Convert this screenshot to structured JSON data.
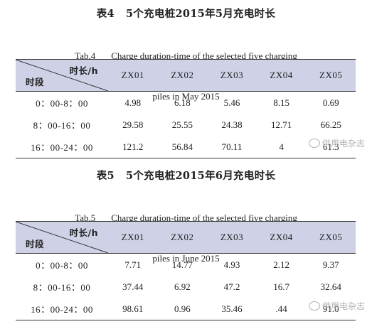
{
  "table4": {
    "title_cn_num": "表4",
    "title_cn_text": "5个充电桩2015年5月充电时长",
    "title_en_num": "Tab.4",
    "title_en_line1": "Charge duration-time of the selected five charging",
    "title_en_line2": "piles in May 2015",
    "corner_top": "时长/h",
    "corner_bottom": "时段",
    "columns": [
      "ZX01",
      "ZX02",
      "ZX03",
      "ZX04",
      "ZX05"
    ],
    "rows": [
      {
        "period": "0：00-8：00",
        "values": [
          "4.98",
          "6.18",
          "5.46",
          "8.15",
          "0.69"
        ]
      },
      {
        "period": "8：00-16：00",
        "values": [
          "29.58",
          "25.55",
          "24.38",
          "12.71",
          "66.25"
        ]
      },
      {
        "period": "16：00-24：00",
        "values": [
          "121.2",
          "56.84",
          "70.11",
          "4",
          "61.3"
        ]
      }
    ],
    "watermark": "供用电杂志"
  },
  "table5": {
    "title_cn_num": "表5",
    "title_cn_text": "5个充电桩2015年6月充电时长",
    "title_en_num": "Tab.5",
    "title_en_line1": "Charge duration-time of the selected five charging",
    "title_en_line2": "piles in June 2015",
    "corner_top": "时长/h",
    "corner_bottom": "时段",
    "columns": [
      "ZX01",
      "ZX02",
      "ZX03",
      "ZX04",
      "ZX05"
    ],
    "rows": [
      {
        "period": "0：00-8：00",
        "values": [
          "7.71",
          "14.77",
          "4.93",
          "2.12",
          "9.37"
        ]
      },
      {
        "period": "8：00-16：00",
        "values": [
          "37.44",
          "6.92",
          "47.2",
          "16.7",
          "32.64"
        ]
      },
      {
        "period": "16：00-24：00",
        "values": [
          "98.61",
          "0.96",
          "35.46",
          ".44",
          "91.0"
        ]
      }
    ],
    "watermark": "供用电杂志"
  }
}
